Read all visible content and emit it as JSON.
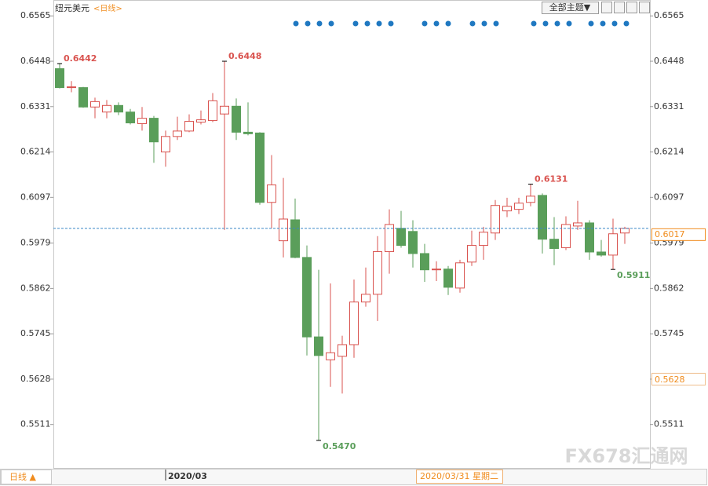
{
  "chart_data": {
    "type": "candlestick",
    "title": "纽元美元",
    "period": "<日线>",
    "theme_button": "全部主题▼",
    "period_button": "日线 ▲",
    "crosshair_date": "2020/03/31 星期二",
    "crosshair_value": 0.5628,
    "watermark": "FX678汇通网",
    "up_color": "#d9534f",
    "down_color": "#5a9e5a",
    "last_line_color": "#3a87c8",
    "label_color": "#f08c1e",
    "ylim": [
      0.5399,
      0.6606
    ],
    "yticks": [
      0.6565,
      0.6448,
      0.6331,
      0.6214,
      0.6097,
      0.5979,
      0.5862,
      0.5745,
      0.5628,
      0.5511
    ],
    "categories": [
      null,
      null,
      null,
      null,
      null,
      null,
      null,
      null,
      null,
      "2020/03",
      null,
      null,
      null,
      null,
      null,
      null,
      null,
      null,
      null,
      null,
      null,
      null,
      null,
      null,
      null,
      null,
      null,
      null,
      null,
      null,
      null,
      null,
      null,
      null,
      null,
      null,
      null,
      null,
      null,
      null,
      null,
      null,
      null,
      null,
      null,
      null,
      null,
      null,
      null
    ],
    "series": [
      {
        "name": "纽元美元",
        "open": [
          0.6429,
          0.638,
          0.638,
          0.633,
          0.6317,
          0.6334,
          0.6317,
          0.6287,
          0.6301,
          0.6214,
          0.6254,
          0.6268,
          0.6291,
          0.6295,
          0.6312,
          0.6332,
          0.6265,
          0.6263,
          0.6084,
          0.5985,
          0.6039,
          0.5942,
          0.5737,
          0.5678,
          0.5687,
          0.5717,
          0.5827,
          0.5847,
          0.5957,
          0.6017,
          0.6009,
          0.5952,
          0.591,
          0.5912,
          0.5863,
          0.593,
          0.5973,
          0.6005,
          0.6062,
          0.6066,
          0.6084,
          0.6102,
          0.5989,
          0.5967,
          0.6023,
          0.6031,
          0.5956,
          0.5948,
          0.6005
        ],
        "high": [
          0.6442,
          0.6397,
          0.6382,
          0.6354,
          0.6348,
          0.6342,
          0.6325,
          0.633,
          0.6307,
          0.6269,
          0.6305,
          0.6311,
          0.6321,
          0.6366,
          0.6448,
          0.6352,
          0.6342,
          0.6265,
          0.6206,
          0.6147,
          0.6094,
          0.5973,
          0.591,
          0.5875,
          0.574,
          0.5885,
          0.5916,
          0.5997,
          0.6066,
          0.6062,
          0.6038,
          0.5977,
          0.5932,
          0.592,
          0.5936,
          0.6011,
          0.6021,
          0.609,
          0.6096,
          0.6096,
          0.6131,
          0.6107,
          0.6046,
          0.6048,
          0.6088,
          0.6038,
          0.5987,
          0.6042,
          0.6021
        ],
        "low": [
          0.6378,
          0.6368,
          0.6328,
          0.6301,
          0.6301,
          0.6309,
          0.6285,
          0.6269,
          0.6186,
          0.6176,
          0.6245,
          0.6265,
          0.6285,
          0.6291,
          0.6013,
          0.6245,
          0.6257,
          0.6078,
          0.6017,
          0.5942,
          0.594,
          0.5689,
          0.547,
          0.5608,
          0.5591,
          0.5683,
          0.5815,
          0.5778,
          0.59,
          0.5967,
          0.5916,
          0.5879,
          0.5881,
          0.5845,
          0.5851,
          0.592,
          0.5936,
          0.5987,
          0.6046,
          0.6054,
          0.6074,
          0.5952,
          0.5922,
          0.5961,
          0.6013,
          0.5936,
          0.5944,
          0.5911,
          0.5977
        ],
        "close": [
          0.638,
          0.6382,
          0.633,
          0.6344,
          0.6334,
          0.6317,
          0.6289,
          0.6301,
          0.624,
          0.6254,
          0.6268,
          0.6293,
          0.6297,
          0.6346,
          0.6332,
          0.6265,
          0.6261,
          0.6084,
          0.6129,
          0.6041,
          0.5942,
          0.5737,
          0.5689,
          0.5696,
          0.5717,
          0.5827,
          0.5847,
          0.5957,
          0.6027,
          0.5973,
          0.5952,
          0.591,
          0.5912,
          0.5865,
          0.5928,
          0.5973,
          0.6007,
          0.6076,
          0.6074,
          0.6082,
          0.61,
          0.5989,
          0.5965,
          0.6027,
          0.6031,
          0.5956,
          0.5948,
          0.6003,
          0.6017
        ],
        "high_labels": [
          "0.6442",
          null,
          null,
          null,
          null,
          null,
          null,
          null,
          null,
          null,
          null,
          null,
          null,
          null,
          "0.6448",
          null,
          null,
          null,
          null,
          null,
          null,
          null,
          null,
          null,
          null,
          null,
          null,
          null,
          null,
          null,
          null,
          null,
          null,
          null,
          null,
          null,
          null,
          null,
          null,
          null,
          "0.6131",
          null,
          null,
          null,
          null,
          null,
          null,
          null,
          null
        ],
        "low_labels": [
          null,
          null,
          null,
          null,
          null,
          null,
          null,
          null,
          null,
          null,
          null,
          null,
          null,
          null,
          null,
          null,
          null,
          null,
          null,
          null,
          null,
          null,
          "0.5470",
          null,
          null,
          null,
          null,
          null,
          null,
          null,
          null,
          null,
          null,
          null,
          null,
          null,
          null,
          null,
          null,
          null,
          null,
          null,
          null,
          null,
          null,
          null,
          null,
          "0.5911",
          null
        ]
      }
    ]
  }
}
